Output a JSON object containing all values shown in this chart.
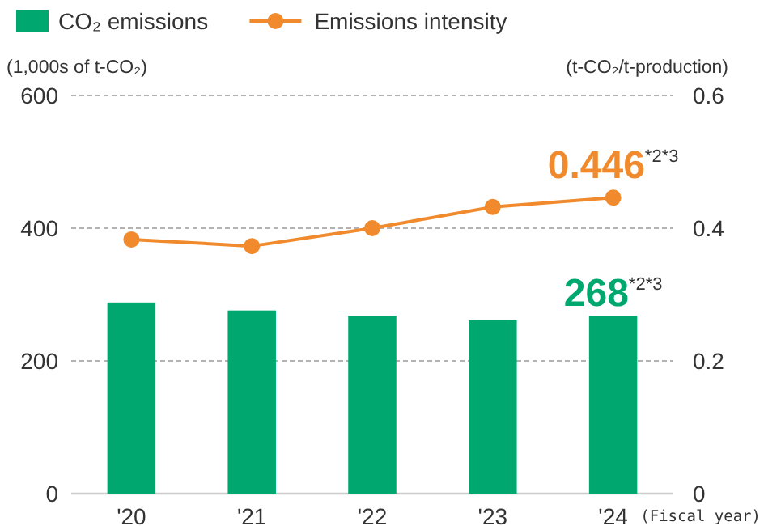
{
  "chart_data": {
    "type": "bar",
    "categories": [
      "'20",
      "'21",
      "'22",
      "'23",
      "'24"
    ],
    "series": [
      {
        "name": "CO₂ emissions",
        "color": "#00a870",
        "values": [
          288,
          276,
          268,
          261,
          268
        ],
        "value_labels": [
          null,
          null,
          null,
          null,
          "268"
        ]
      },
      {
        "name": "Emissions intensity",
        "type": "line",
        "axis": "y2",
        "color": "#f08a2c",
        "values": [
          0.383,
          0.373,
          0.4,
          0.432,
          0.446
        ],
        "value_labels": [
          null,
          null,
          null,
          null,
          "0.446"
        ],
        "marker": "circle"
      }
    ],
    "ylabel": "(1,000s of t-CO₂)",
    "y2label": "(t-CO₂/t-production)",
    "xlabel": "(Fiscal year)",
    "ylim": [
      0,
      600
    ],
    "yticks": [
      0,
      200,
      400,
      600
    ],
    "y2lim": [
      0,
      0.6
    ],
    "y2ticks": [
      0,
      0.2,
      0.4,
      0.6
    ],
    "annotations": [
      "*2*3",
      "*2*3"
    ],
    "grid": "y",
    "legend": "top left"
  }
}
